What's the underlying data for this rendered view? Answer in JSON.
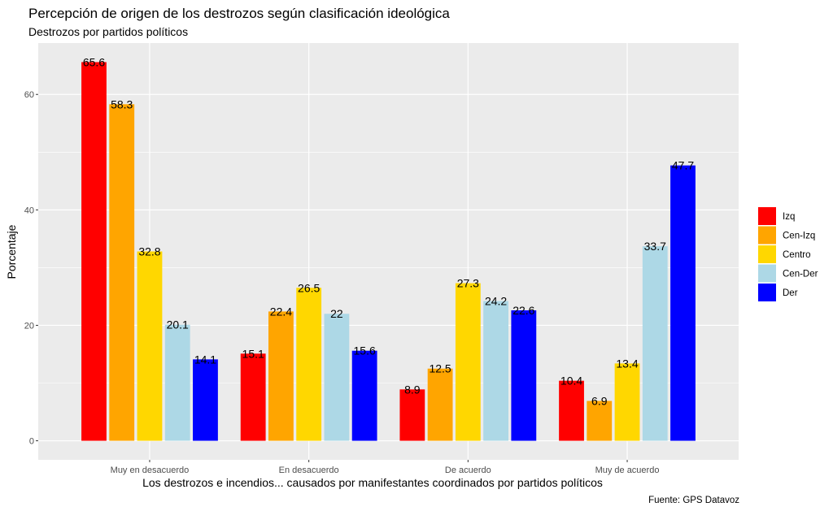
{
  "chart_data": {
    "type": "bar",
    "title": "Percepción de origen de los destrozos según clasificación ideológica",
    "subtitle": "Destrozos por partidos políticos",
    "xlabel": "Los destrozos e incendios... causados por manifestantes coordinados por partidos políticos",
    "ylabel": "Porcentaje",
    "caption": "Fuente: GPS Datavoz",
    "categories": [
      "Muy en desacuerdo",
      "En desacuerdo",
      "De acuerdo",
      "Muy de acuerdo"
    ],
    "series": [
      {
        "name": "Izq",
        "color": "#ff0000",
        "values": [
          65.6,
          15.1,
          8.9,
          10.4
        ],
        "labels": [
          "65.6",
          "15.1",
          "8.9",
          "10.4"
        ]
      },
      {
        "name": "Cen-Izq",
        "color": "#ffa500",
        "values": [
          58.3,
          22.4,
          12.5,
          6.9
        ],
        "labels": [
          "58.3",
          "22.4",
          "12.5",
          "6.9"
        ]
      },
      {
        "name": "Centro",
        "color": "#ffd700",
        "values": [
          32.8,
          26.5,
          27.3,
          13.4
        ],
        "labels": [
          "32.8",
          "26.5",
          "27.3",
          "13.4"
        ]
      },
      {
        "name": "Cen-Der",
        "color": "#add8e6",
        "values": [
          20.1,
          22,
          24.2,
          33.7
        ],
        "labels": [
          "20.1",
          "22",
          "24.2",
          "33.7"
        ]
      },
      {
        "name": "Der",
        "color": "#0000ff",
        "values": [
          14.1,
          15.6,
          22.6,
          47.7
        ],
        "labels": [
          "14.1",
          "15.6",
          "22.6",
          "47.7"
        ]
      }
    ],
    "yticks": [
      0,
      20,
      40,
      60
    ],
    "ytick_labels": [
      "0",
      "20",
      "40",
      "60"
    ],
    "ylim": [
      -3.3,
      68.9
    ],
    "grid": true,
    "panel_color": "#ebebeb",
    "legend_position": "right"
  }
}
